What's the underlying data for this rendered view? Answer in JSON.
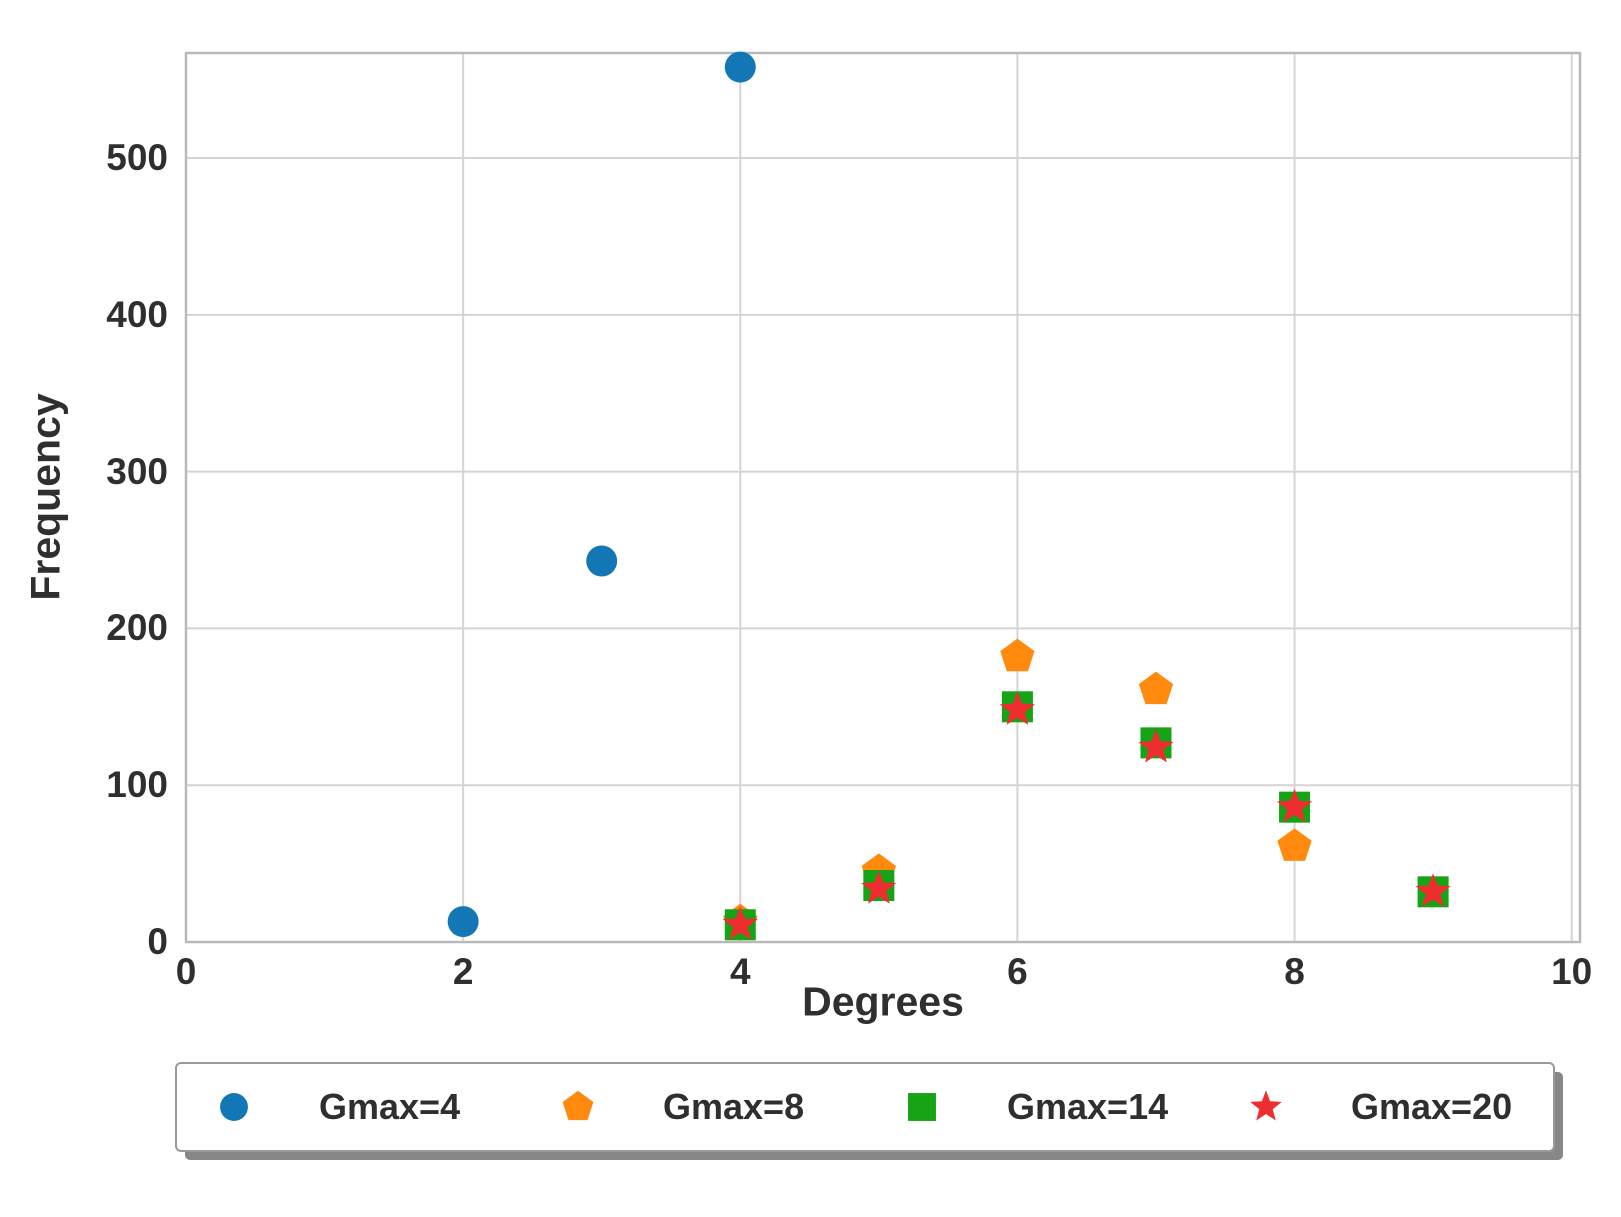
{
  "page": {
    "background": "#ffffff"
  },
  "colors": {
    "grid": "#d4d4d4",
    "spine": "#b9b9b9",
    "text": "#2f2f2f",
    "legend_border": "#9a9a9a",
    "legend_shadow": "#696969"
  },
  "chart_data": {
    "type": "scatter",
    "title": "",
    "xlabel": "Degrees",
    "ylabel": "Frequency",
    "xlim": [
      0,
      10.06
    ],
    "ylim": [
      0,
      567
    ],
    "xticks": [
      0,
      2,
      4,
      6,
      8,
      10
    ],
    "yticks": [
      0,
      100,
      200,
      300,
      400,
      500
    ],
    "grid": true,
    "legend_position": "bottom",
    "series": [
      {
        "name": "Gmax=4",
        "marker": "circle",
        "color": "#1277b4",
        "points": [
          [
            2,
            13
          ],
          [
            3,
            243
          ],
          [
            4,
            558
          ]
        ]
      },
      {
        "name": "Gmax=8",
        "marker": "pentagon",
        "color": "#ff8a0d",
        "points": [
          [
            4,
            13
          ],
          [
            5,
            45
          ],
          [
            6,
            182
          ],
          [
            7,
            161
          ],
          [
            8,
            61
          ]
        ]
      },
      {
        "name": "Gmax=14",
        "marker": "square",
        "color": "#16a316",
        "points": [
          [
            4,
            11
          ],
          [
            5,
            36
          ],
          [
            6,
            150
          ],
          [
            7,
            127
          ],
          [
            8,
            86
          ],
          [
            9,
            32
          ]
        ]
      },
      {
        "name": "Gmax=20",
        "marker": "star",
        "color": "#ee2e2e",
        "points": [
          [
            4,
            11
          ],
          [
            5,
            34
          ],
          [
            6,
            148
          ],
          [
            7,
            124
          ],
          [
            8,
            86
          ],
          [
            9,
            32
          ]
        ]
      }
    ]
  }
}
